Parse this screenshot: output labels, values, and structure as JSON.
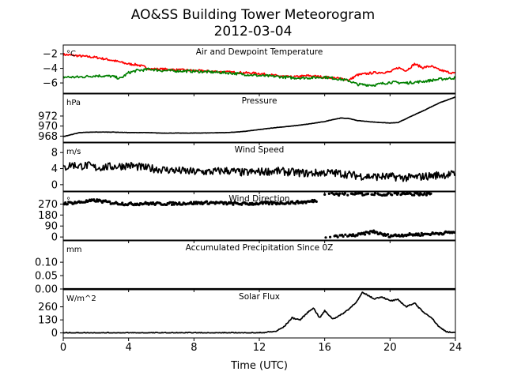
{
  "title": "AO&SS Building Tower Meteorogram",
  "subtitle": "2012-03-04",
  "x_axis": {
    "label": "Time (UTC)",
    "range": [
      0,
      24
    ],
    "ticks": [
      0,
      4,
      8,
      12,
      16,
      20,
      24
    ],
    "tick_labels": [
      "0",
      "4",
      "8",
      "12",
      "16",
      "20",
      "24"
    ]
  },
  "colors": {
    "air_temp": "#ff0000",
    "dewpoint": "#008000",
    "default_line": "#000000"
  },
  "chart_data": [
    {
      "type": "line",
      "title": "Air and Dewpoint Temperature",
      "unit": "°C",
      "ylim": [
        -7.4,
        -0.8
      ],
      "yticks": [
        -2,
        -4,
        -6
      ],
      "ytick_labels": [
        "−2",
        "−4",
        "−6"
      ],
      "series": [
        {
          "key": "air_temp",
          "color": "#ff0000",
          "x": [
            0,
            1,
            2,
            3,
            4,
            4.5,
            5,
            5.3,
            6,
            8,
            10,
            12,
            13,
            14,
            15,
            16,
            17,
            17.5,
            18,
            19,
            20,
            20.5,
            21,
            21.5,
            22,
            22.5,
            23,
            23.5,
            24
          ],
          "y": [
            -2.1,
            -2.3,
            -2.5,
            -2.9,
            -3.4,
            -3.5,
            -3.8,
            -4.1,
            -4.1,
            -4.3,
            -4.5,
            -4.7,
            -5.0,
            -5.2,
            -5.0,
            -5.2,
            -5.4,
            -5.6,
            -4.9,
            -4.6,
            -4.5,
            -3.9,
            -4.3,
            -3.4,
            -3.9,
            -3.7,
            -4.2,
            -4.5,
            -4.7
          ]
        },
        {
          "key": "dewpoint",
          "color": "#008000",
          "x": [
            0,
            1,
            2,
            3,
            3.5,
            4,
            4.5,
            5,
            5.3,
            6,
            8,
            10,
            12,
            13,
            14,
            15,
            16,
            17,
            17.5,
            18,
            19,
            20,
            21,
            22,
            23,
            24
          ],
          "y": [
            -5.2,
            -5.2,
            -5.0,
            -5.1,
            -5.4,
            -4.6,
            -4.3,
            -4.2,
            -4.1,
            -4.3,
            -4.4,
            -4.6,
            -5.0,
            -5.1,
            -5.3,
            -5.3,
            -5.2,
            -5.5,
            -5.7,
            -6.2,
            -6.3,
            -5.9,
            -6.0,
            -5.8,
            -5.5,
            -5.3
          ]
        }
      ]
    },
    {
      "type": "line",
      "title": "Pressure",
      "unit": "hPa",
      "ylim": [
        966.8,
        976.4
      ],
      "yticks": [
        972,
        970,
        968
      ],
      "ytick_labels": [
        "972",
        "970",
        "968"
      ],
      "series": [
        {
          "key": "pressure",
          "color": "#000000",
          "x": [
            0,
            0.5,
            1,
            2,
            3,
            4,
            5,
            6,
            8,
            10,
            11,
            12,
            13,
            14,
            15,
            16,
            16.5,
            17,
            17.5,
            18,
            19,
            20,
            20.5,
            21,
            22,
            23,
            24
          ],
          "y": [
            967.9,
            968.3,
            968.7,
            968.8,
            968.8,
            968.7,
            968.7,
            968.6,
            968.6,
            968.7,
            968.9,
            969.3,
            969.7,
            970.0,
            970.4,
            970.9,
            971.3,
            971.6,
            971.5,
            971.1,
            970.8,
            970.6,
            970.7,
            971.5,
            973.0,
            974.6,
            975.8
          ]
        }
      ]
    },
    {
      "type": "line",
      "title": "Wind Speed",
      "unit": "m/s",
      "ylim": [
        -1.6,
        10.4
      ],
      "yticks": [
        8,
        4,
        0
      ],
      "ytick_labels": [
        "8",
        "4",
        "0"
      ],
      "series": [
        {
          "key": "wind_speed",
          "color": "#000000",
          "x": [
            0,
            0.5,
            1,
            1.5,
            2,
            3,
            4,
            5,
            6,
            7,
            8,
            9,
            10,
            11,
            12,
            13,
            14,
            15,
            16,
            17,
            18,
            19,
            20,
            21,
            22,
            23,
            24
          ],
          "y": [
            4.0,
            5.0,
            4.6,
            4.8,
            4.2,
            4.5,
            4.8,
            4.2,
            3.8,
            3.5,
            3.2,
            3.2,
            3.5,
            3.0,
            3.2,
            3.4,
            3.1,
            2.8,
            3.0,
            2.8,
            2.2,
            2.0,
            2.0,
            1.7,
            2.0,
            2.4,
            2.6
          ]
        }
      ]
    },
    {
      "type": "line",
      "title": "Wind Direction",
      "unit": "°",
      "ylim": [
        -25,
        370
      ],
      "yticks": [
        270,
        180,
        90,
        0
      ],
      "ytick_labels": [
        "270",
        "180",
        "90",
        "0"
      ],
      "series": [
        {
          "key": "wind_dir_west",
          "color": "#000000",
          "x": [
            0,
            1,
            2,
            3,
            4,
            5,
            6,
            7,
            8,
            9,
            10,
            11,
            12,
            13,
            14,
            15,
            15.5
          ],
          "y": [
            275,
            285,
            300,
            280,
            270,
            275,
            272,
            275,
            278,
            282,
            276,
            272,
            275,
            278,
            282,
            288,
            300
          ]
        },
        {
          "key": "wind_dir_north",
          "color": "#000000",
          "x": [
            16,
            16.5,
            17,
            17.5,
            18,
            18.5,
            19.5,
            20,
            20.5,
            21,
            21.5,
            22,
            22.5
          ],
          "y": [
            352,
            355,
            350,
            353,
            356,
            350,
            352,
            348,
            355,
            350,
            354,
            352,
            356
          ]
        },
        {
          "key": "wind_dir_low",
          "color": "#000000",
          "x": [
            16,
            17,
            18,
            18.5,
            19,
            19.5,
            20,
            21,
            22,
            23,
            24
          ],
          "y": [
            5,
            8,
            15,
            30,
            45,
            20,
            10,
            18,
            22,
            30,
            40
          ]
        }
      ]
    },
    {
      "type": "line",
      "title": "Accumulated Precipitation Since 0Z",
      "unit": "mm",
      "ylim": [
        0,
        0.18
      ],
      "yticks": [
        0.1,
        0.05,
        0.0
      ],
      "ytick_labels": [
        "0.10",
        "0.05",
        "0.00"
      ],
      "series": [
        {
          "key": "precip",
          "color": "#000000",
          "x": [
            0,
            24
          ],
          "y": [
            0,
            0
          ]
        }
      ]
    },
    {
      "type": "line",
      "title": "Solar Flux",
      "unit": "W/m^2",
      "ylim": [
        -50,
        430
      ],
      "yticks": [
        260,
        130,
        0
      ],
      "ytick_labels": [
        "260",
        "130",
        "0"
      ],
      "series": [
        {
          "key": "solar",
          "color": "#000000",
          "x": [
            0,
            12,
            13,
            13.5,
            14,
            14.5,
            15,
            15.3,
            15.7,
            16,
            16.5,
            17,
            17.5,
            18,
            18.3,
            18.6,
            19,
            19.5,
            20,
            20.5,
            21,
            21.5,
            22,
            22.5,
            23,
            23.5,
            24
          ],
          "y": [
            0,
            0,
            15,
            60,
            150,
            130,
            210,
            250,
            150,
            220,
            140,
            180,
            240,
            320,
            400,
            380,
            340,
            360,
            320,
            330,
            260,
            300,
            210,
            160,
            60,
            10,
            0
          ]
        }
      ]
    }
  ]
}
